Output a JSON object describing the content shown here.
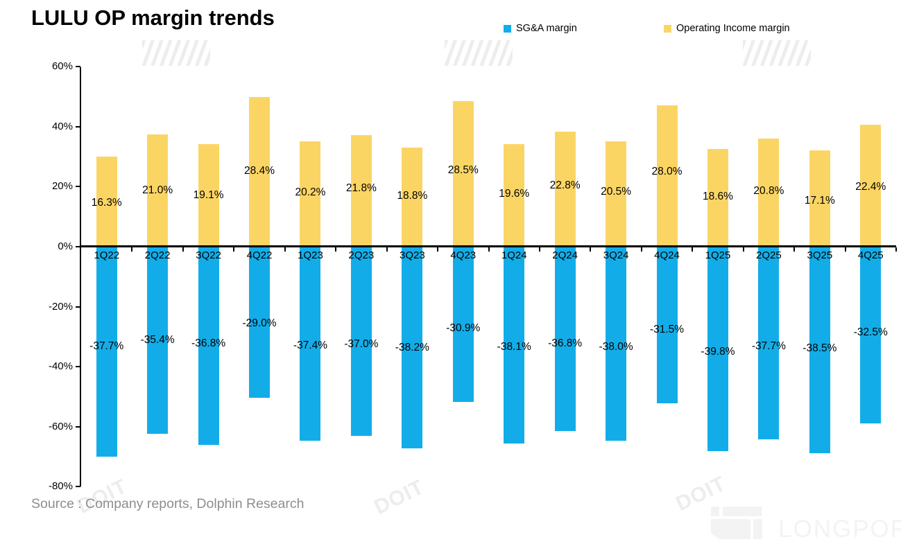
{
  "title": "LULU OP margin trends",
  "legend": [
    {
      "label": "SG&A margin",
      "color": "#12ADE8"
    },
    {
      "label": "Operating Income margin",
      "color": "#FBD564"
    }
  ],
  "source": "Source : Company reports, Dolphin Research",
  "watermark": {
    "doit": "DOIT",
    "brand": "LONGPORT"
  },
  "chart_data": {
    "type": "bar",
    "title": "LULU OP margin trends",
    "categories": [
      "1Q22",
      "2Q22",
      "3Q22",
      "4Q22",
      "1Q23",
      "2Q23",
      "3Q23",
      "4Q23",
      "1Q24",
      "2Q24",
      "3Q24",
      "4Q24",
      "1Q25",
      "2Q25",
      "3Q25",
      "4Q25"
    ],
    "series": [
      {
        "name": "SG&A margin",
        "color": "#12ADE8",
        "values": [
          -37.7,
          -35.4,
          -36.8,
          -29.0,
          -37.4,
          -37.0,
          -38.2,
          -30.9,
          -38.1,
          -36.8,
          -38.0,
          -31.5,
          -39.8,
          -37.7,
          -38.5,
          -32.5
        ]
      },
      {
        "name": "Operating Income margin",
        "color": "#FBD564",
        "values": [
          16.3,
          21.0,
          19.1,
          28.4,
          20.2,
          21.8,
          18.8,
          28.5,
          19.6,
          22.8,
          20.5,
          28.0,
          18.6,
          20.8,
          17.1,
          22.4
        ]
      }
    ],
    "bar_extents_pct_as_drawn": {
      "sga": [
        -70.0,
        -62.4,
        -66.1,
        -50.4,
        -64.7,
        -63.1,
        -67.2,
        -51.7,
        -65.6,
        -61.5,
        -64.7,
        -52.2,
        -68.2,
        -64.2,
        -68.8,
        -58.9
      ],
      "operating_income": [
        30.0,
        37.4,
        34.2,
        49.9,
        35.1,
        37.2,
        33.0,
        48.5,
        34.2,
        38.3,
        35.1,
        47.1,
        32.6,
        36.0,
        32.0,
        40.7
      ]
    },
    "ylim": [
      -80,
      60
    ],
    "ytick_labels": [
      "60%",
      "40%",
      "20%",
      "0%",
      "-20%",
      "-40%",
      "-60%",
      "-80%"
    ],
    "ytick_values": [
      60,
      40,
      20,
      0,
      -20,
      -40,
      -60,
      -80
    ],
    "legend_position": "top",
    "grid": false,
    "data_labels": "shown, one decimal with % sign"
  }
}
